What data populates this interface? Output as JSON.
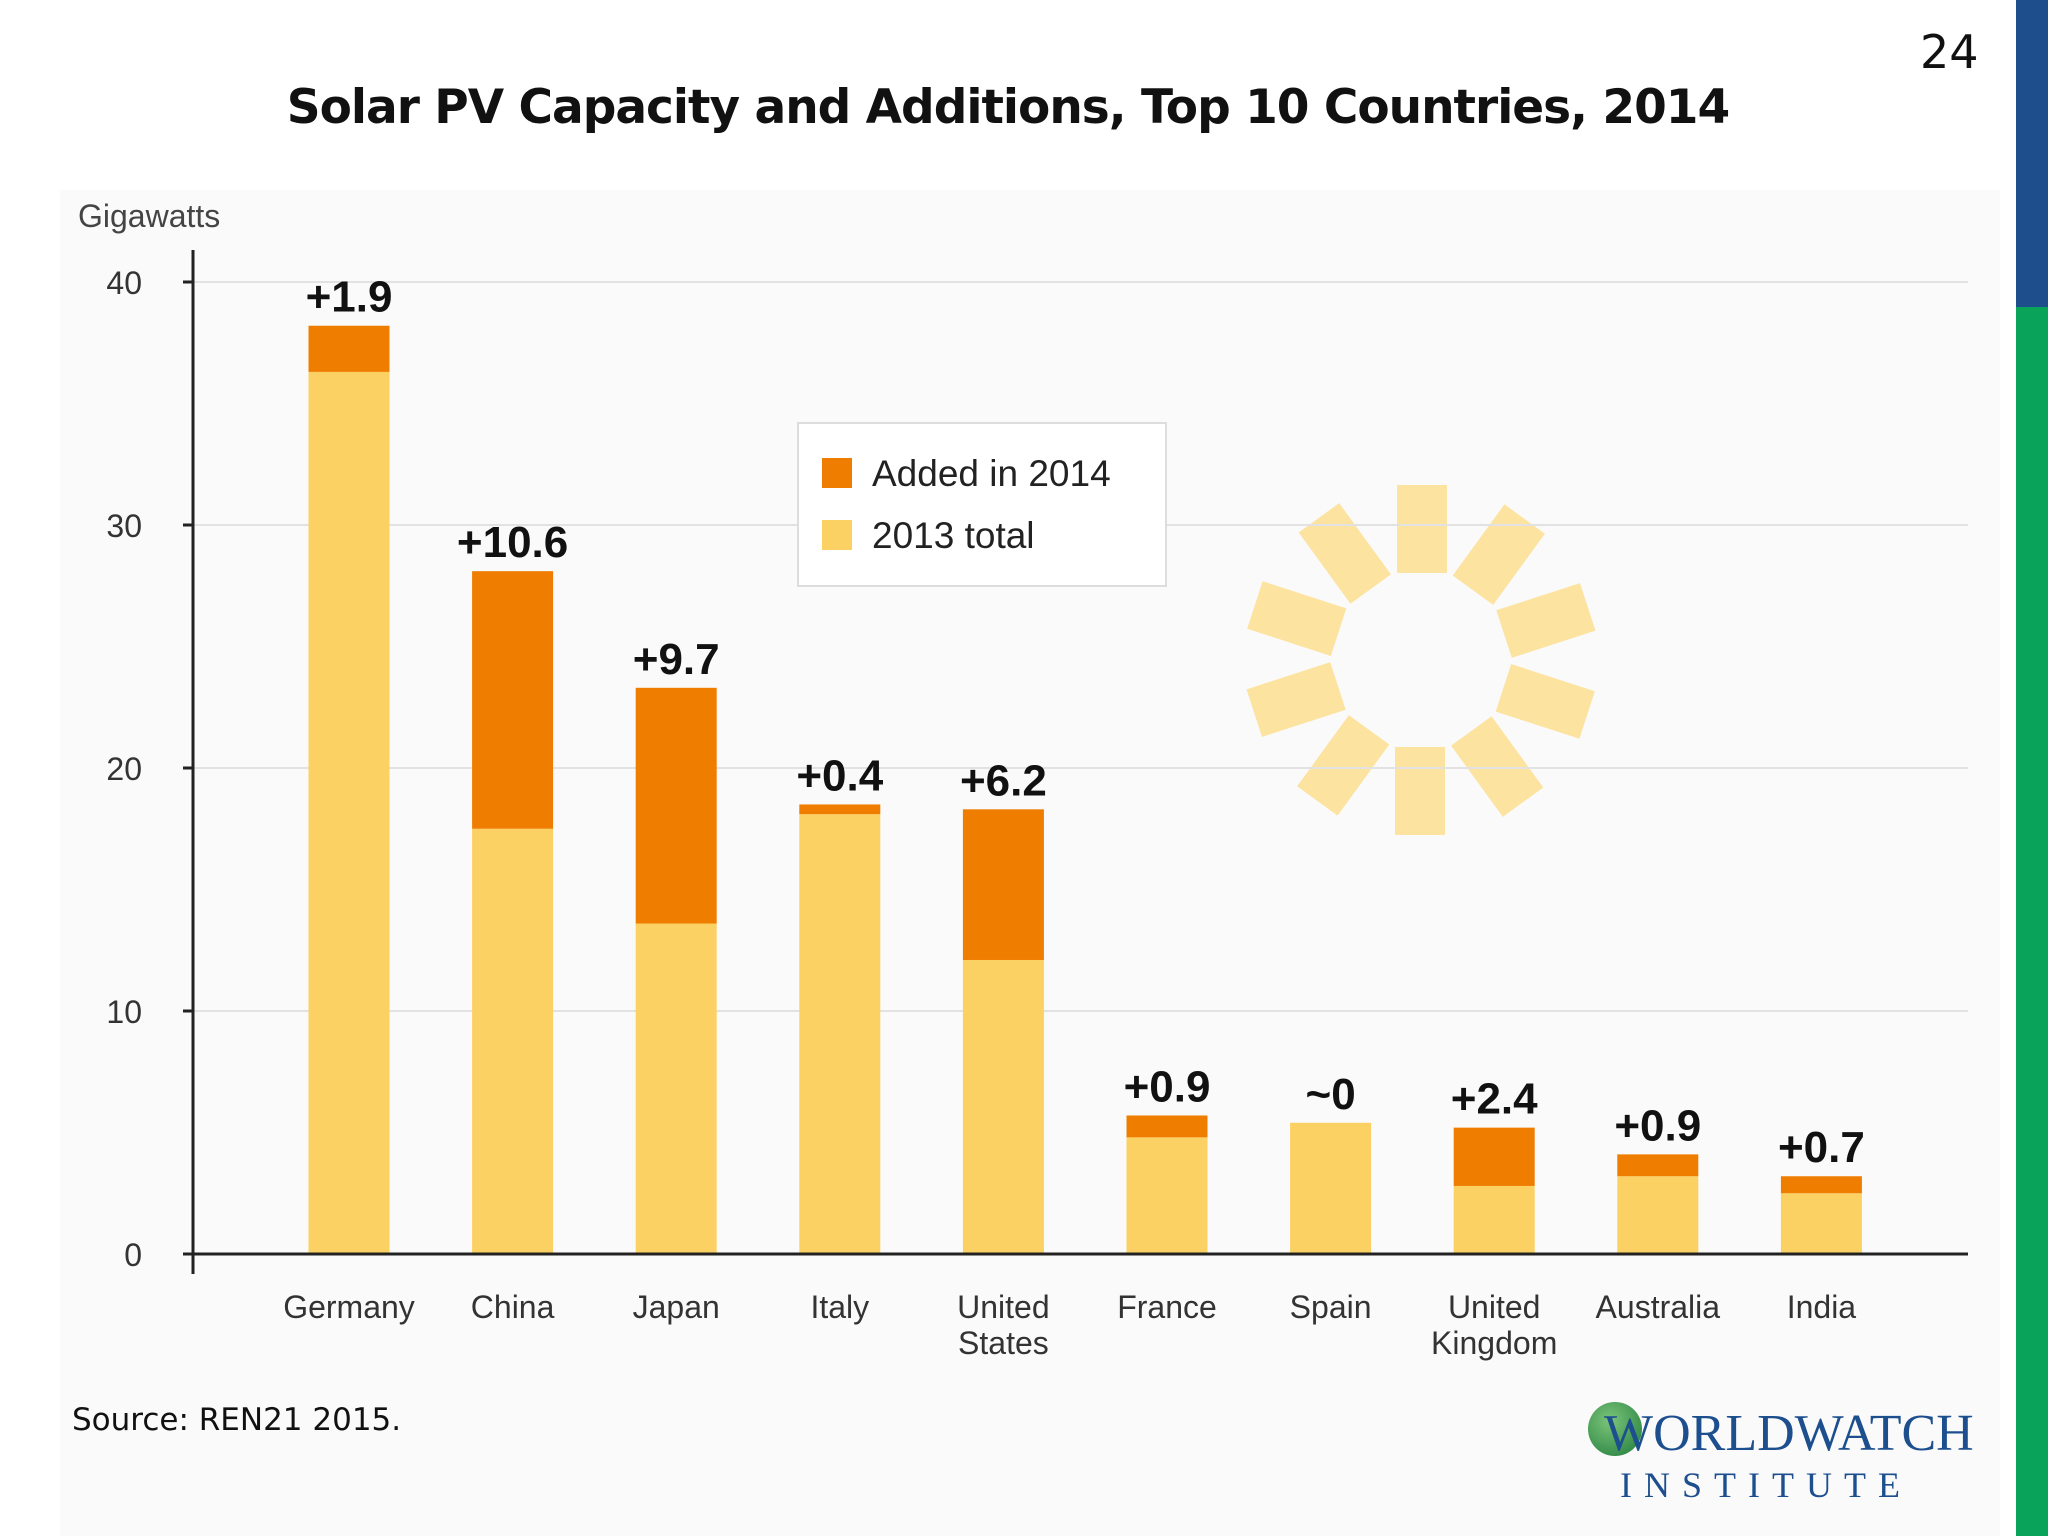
{
  "slide": {
    "title": "Solar PV Capacity and Additions, Top 10 Countries, 2014",
    "page_number": "24",
    "source": "Source: REN21 2015.",
    "logo_text": [
      "WORLDWATCH",
      "INSTITUTE"
    ],
    "colors": {
      "accent_blue": "#1f4e8c",
      "accent_green": "#0aa35a"
    }
  },
  "chart_data": {
    "type": "bar",
    "stacked": true,
    "ylabel": "Gigawatts",
    "ylim": [
      0,
      40
    ],
    "yticks": [
      0,
      10,
      20,
      30,
      40
    ],
    "grid": true,
    "legend_position": "top-center",
    "categories": [
      "Germany",
      "China",
      "Japan",
      "Italy",
      "United States",
      "France",
      "Spain",
      "United Kingdom",
      "Australia",
      "India"
    ],
    "category_lines": [
      [
        "Germany"
      ],
      [
        "China"
      ],
      [
        "Japan"
      ],
      [
        "Italy"
      ],
      [
        "United",
        "States"
      ],
      [
        "France"
      ],
      [
        "Spain"
      ],
      [
        "United",
        "Kingdom"
      ],
      [
        "Australia"
      ],
      [
        "India"
      ]
    ],
    "series": [
      {
        "name": "2013 total",
        "color": "#fcd163",
        "values": [
          36.3,
          17.5,
          13.6,
          18.1,
          12.1,
          4.8,
          5.4,
          2.8,
          3.2,
          2.5
        ]
      },
      {
        "name": "Added in 2014",
        "color": "#ef7d00",
        "values": [
          1.9,
          10.6,
          9.7,
          0.4,
          6.2,
          0.9,
          0.0,
          2.4,
          0.9,
          0.7
        ]
      }
    ],
    "data_labels": [
      "+1.9",
      "+10.6",
      "+9.7",
      "+0.4",
      "+6.2",
      "+0.9",
      "~0",
      "+2.4",
      "+0.9",
      "+0.7"
    ]
  }
}
